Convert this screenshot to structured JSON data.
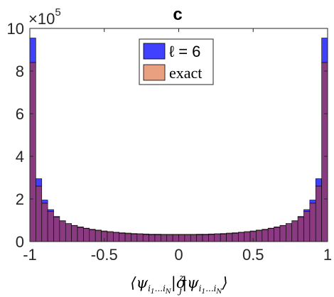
{
  "chart_data": {
    "type": "bar",
    "title": "c",
    "xlabel": "⟨ψ_{i1...iN}|σ_j^z|ψ_{i1...iN}⟩",
    "ylabel": "",
    "y_multiplier": "×10",
    "y_multiplier_exp": "5",
    "xlim": [
      -1,
      1
    ],
    "ylim": [
      0,
      10
    ],
    "x_ticks": [
      "-1",
      "-0.5",
      "0",
      "0.5",
      "1"
    ],
    "x_tick_values": [
      -1,
      -0.5,
      0,
      0.5,
      1
    ],
    "y_ticks": [
      "0",
      "2",
      "4",
      "6",
      "8",
      "10"
    ],
    "y_tick_values": [
      0,
      2,
      4,
      6,
      8,
      10
    ],
    "bin_width": 0.04,
    "legend": {
      "position": "top-center"
    },
    "series": [
      {
        "name": "ℓ = 6",
        "color": "#4040ff",
        "values": [
          9.55,
          2.95,
          1.95,
          1.5,
          1.18,
          0.98,
          0.85,
          0.75,
          0.67,
          0.61,
          0.55,
          0.51,
          0.47,
          0.44,
          0.41,
          0.39,
          0.37,
          0.35,
          0.34,
          0.33,
          0.32,
          0.32,
          0.31,
          0.31,
          0.31,
          0.31,
          0.31,
          0.31,
          0.32,
          0.32,
          0.33,
          0.34,
          0.35,
          0.37,
          0.39,
          0.41,
          0.44,
          0.47,
          0.51,
          0.55,
          0.61,
          0.67,
          0.75,
          0.85,
          0.98,
          1.18,
          1.5,
          1.95,
          2.95,
          9.55
        ]
      },
      {
        "name": "exact",
        "color": "#e8a080",
        "values": [
          8.4,
          2.6,
          1.8,
          1.42,
          1.14,
          0.97,
          0.85,
          0.76,
          0.69,
          0.63,
          0.58,
          0.54,
          0.5,
          0.47,
          0.44,
          0.42,
          0.4,
          0.38,
          0.37,
          0.36,
          0.35,
          0.35,
          0.34,
          0.34,
          0.34,
          0.34,
          0.34,
          0.34,
          0.35,
          0.35,
          0.36,
          0.37,
          0.38,
          0.4,
          0.42,
          0.44,
          0.47,
          0.5,
          0.54,
          0.58,
          0.63,
          0.69,
          0.76,
          0.85,
          0.97,
          1.14,
          1.42,
          1.8,
          2.6,
          8.4
        ]
      }
    ]
  }
}
